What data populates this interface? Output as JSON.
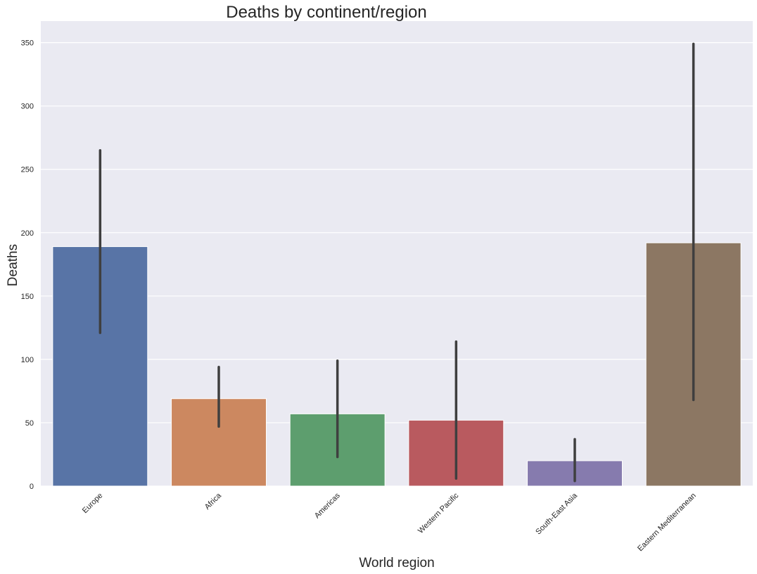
{
  "chart_data": {
    "type": "bar",
    "title": "Deaths by continent/region",
    "xlabel": "World region",
    "ylabel": "Deaths",
    "ylim": [
      0,
      367
    ],
    "yticks": [
      0,
      50,
      100,
      150,
      200,
      250,
      300,
      350
    ],
    "categories": [
      "Europe",
      "Africa",
      "Americas",
      "Western Pacific",
      "South-East Asia",
      "Eastern Mediterranean"
    ],
    "values": [
      189,
      69,
      57,
      52,
      20,
      192
    ],
    "error_low": [
      121,
      47,
      23,
      6,
      4,
      68
    ],
    "error_high": [
      265,
      94,
      99,
      114,
      37,
      349
    ],
    "colors": [
      "#5874a6",
      "#cc8860",
      "#5d9e6e",
      "#b95a5f",
      "#867bae",
      "#8c7763"
    ],
    "background": "#eaeaf2",
    "grid": true,
    "error_bar_color": "#3f3f3f"
  }
}
